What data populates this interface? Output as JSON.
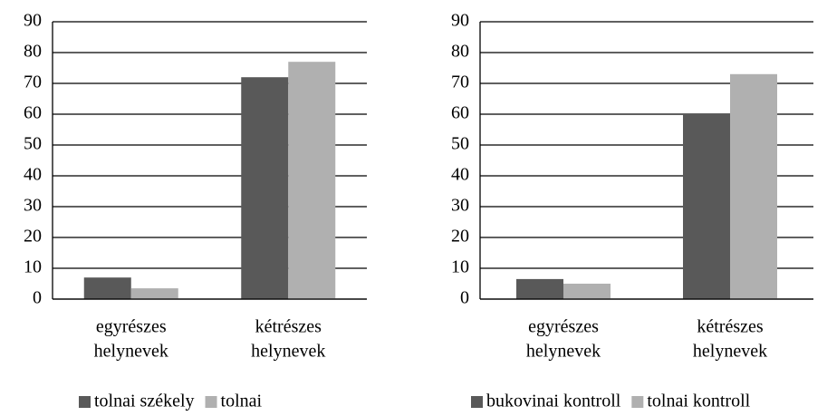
{
  "chart_data": [
    {
      "type": "bar",
      "categories": [
        [
          "egyrészes",
          "helynevek"
        ],
        [
          "kétrészes",
          "helynevek"
        ]
      ],
      "series": [
        {
          "name": "tolnai székely",
          "color": "#595959",
          "values": [
            7,
            72
          ]
        },
        {
          "name": "tolnai",
          "color": "#b0b0b0",
          "values": [
            3.5,
            77
          ]
        }
      ],
      "ylim": [
        0,
        90
      ],
      "yticks": [
        0,
        10,
        20,
        30,
        40,
        50,
        60,
        70,
        80,
        90
      ],
      "grid": true,
      "legend": "bottom"
    },
    {
      "type": "bar",
      "categories": [
        [
          "egyrészes",
          "helynevek"
        ],
        [
          "kétrészes",
          "helynevek"
        ]
      ],
      "series": [
        {
          "name": "bukovinai kontroll",
          "color": "#595959",
          "values": [
            6.5,
            60
          ]
        },
        {
          "name": "tolnai kontroll",
          "color": "#b0b0b0",
          "values": [
            5,
            73
          ]
        }
      ],
      "ylim": [
        0,
        90
      ],
      "yticks": [
        0,
        10,
        20,
        30,
        40,
        50,
        60,
        70,
        80,
        90
      ],
      "grid": true,
      "legend": "bottom"
    }
  ]
}
